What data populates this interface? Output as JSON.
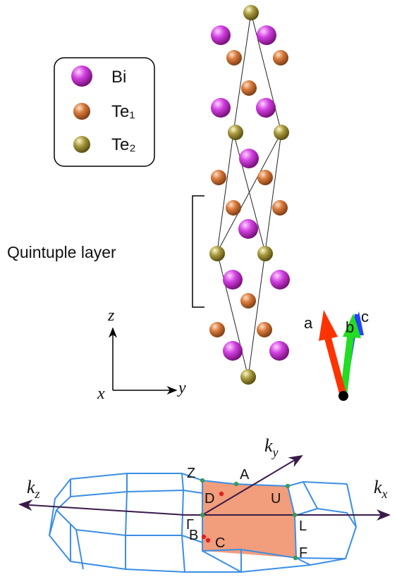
{
  "legend": {
    "items": [
      {
        "label": "Bi",
        "color": "#c030d8"
      },
      {
        "label": "Te₁",
        "color": "#d0703a"
      },
      {
        "label": "Te₂",
        "color": "#a09040"
      }
    ]
  },
  "annotation": {
    "quintuple": "Quintuple layer"
  },
  "real_axes": {
    "z": "z",
    "y": "y",
    "x": "x"
  },
  "lattice_vectors": [
    {
      "label": "a",
      "color": "#ff3300"
    },
    {
      "label": "b",
      "color": "#22dd22"
    },
    {
      "label": "c",
      "color": "#2244ff"
    }
  ],
  "k_axes": {
    "kz_base": "k",
    "kz_sub": "z",
    "ky_base": "k",
    "ky_sub": "y",
    "kx_base": "k",
    "kx_sub": "x"
  },
  "bz_points": [
    "Z",
    "A",
    "Γ",
    "D",
    "U",
    "L",
    "B",
    "C",
    "F"
  ],
  "colors": {
    "bz_edges": "#3a8ee6",
    "bz_face": "#f08c64",
    "axis": "#3a1a4a"
  }
}
